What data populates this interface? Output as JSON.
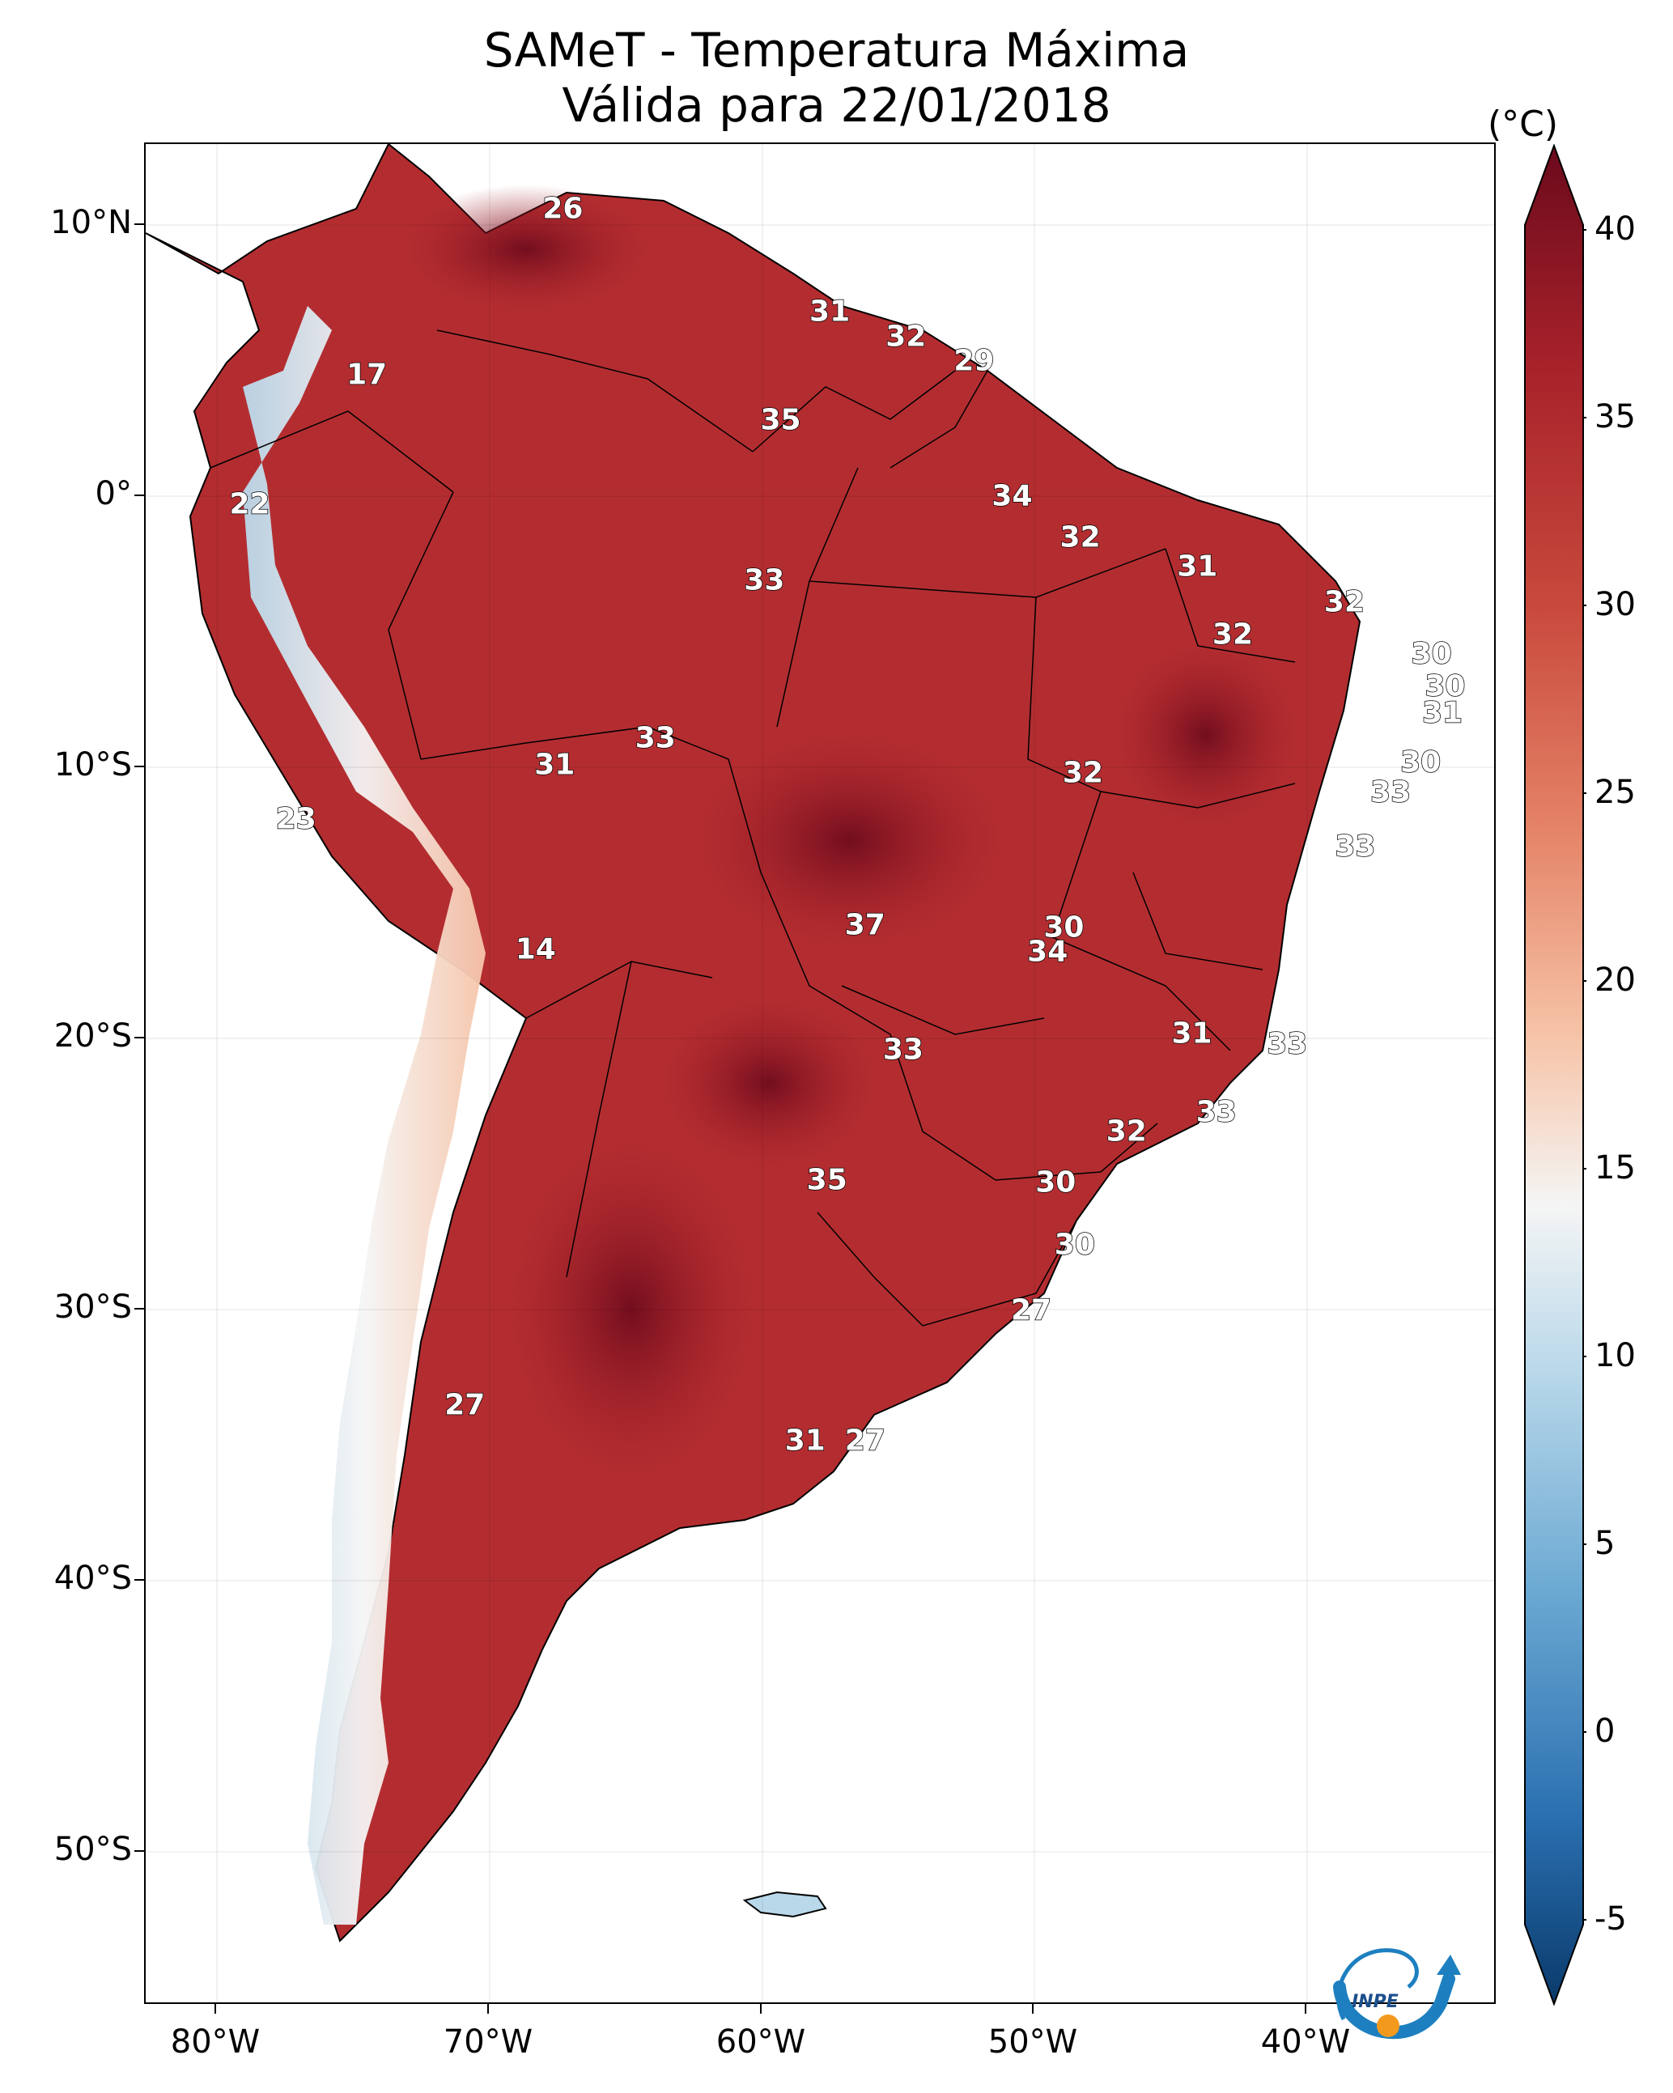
{
  "title": "SAMeT - Temperatura Máxima",
  "subtitle": "Válida para 22/01/2018",
  "colorbar": {
    "unit": "(°C)",
    "ticks": [
      "40",
      "35",
      "30",
      "25",
      "20",
      "15",
      "10",
      "5",
      "0",
      "-5"
    ],
    "range": [
      -5,
      40
    ],
    "colors": [
      "#0a3a6b",
      "#2a6fb0",
      "#6aa8d2",
      "#b9d8ea",
      "#f5f5f5",
      "#f6c4a8",
      "#e58468",
      "#c94a3d",
      "#a8222a",
      "#6b0a1c"
    ]
  },
  "axes": {
    "lat_labels": [
      "10°N",
      "0°",
      "10°S",
      "20°S",
      "30°S",
      "40°S",
      "50°S"
    ],
    "lon_labels": [
      "80°W",
      "70°W",
      "60°W",
      "50°W",
      "40°W"
    ]
  },
  "map_labels": [
    {
      "text": "26",
      "lon": -67.3,
      "lat": 10.6
    },
    {
      "text": "17",
      "lon": -74.5,
      "lat": 4.5
    },
    {
      "text": "22",
      "lon": -78.8,
      "lat": -0.3
    },
    {
      "text": "31",
      "lon": -57.5,
      "lat": 6.8
    },
    {
      "text": "32",
      "lon": -54.7,
      "lat": 5.9
    },
    {
      "text": "29",
      "lon": -52.2,
      "lat": 5.0
    },
    {
      "text": "35",
      "lon": -59.3,
      "lat": 2.8
    },
    {
      "text": "34",
      "lon": -50.8,
      "lat": 0.0
    },
    {
      "text": "32",
      "lon": -48.3,
      "lat": -1.5
    },
    {
      "text": "33",
      "lon": -59.9,
      "lat": -3.1
    },
    {
      "text": "31",
      "lon": -44.0,
      "lat": -2.6
    },
    {
      "text": "32",
      "lon": -38.6,
      "lat": -3.9
    },
    {
      "text": "32",
      "lon": -42.7,
      "lat": -5.1
    },
    {
      "text": "30",
      "lon": -35.4,
      "lat": -5.8
    },
    {
      "text": "30",
      "lon": -34.9,
      "lat": -7.0
    },
    {
      "text": "31",
      "lon": -35.0,
      "lat": -8.0
    },
    {
      "text": "33",
      "lon": -63.9,
      "lat": -8.9
    },
    {
      "text": "31",
      "lon": -67.6,
      "lat": -9.9
    },
    {
      "text": "30",
      "lon": -35.8,
      "lat": -9.8
    },
    {
      "text": "32",
      "lon": -48.2,
      "lat": -10.2
    },
    {
      "text": "33",
      "lon": -36.9,
      "lat": -10.9
    },
    {
      "text": "23",
      "lon": -77.1,
      "lat": -11.9
    },
    {
      "text": "33",
      "lon": -38.2,
      "lat": -12.9
    },
    {
      "text": "37",
      "lon": -56.2,
      "lat": -15.8
    },
    {
      "text": "30",
      "lon": -48.9,
      "lat": -15.9
    },
    {
      "text": "14",
      "lon": -68.3,
      "lat": -16.7
    },
    {
      "text": "34",
      "lon": -49.5,
      "lat": -16.8
    },
    {
      "text": "31",
      "lon": -44.2,
      "lat": -19.8
    },
    {
      "text": "33",
      "lon": -40.7,
      "lat": -20.2
    },
    {
      "text": "33",
      "lon": -54.8,
      "lat": -20.4
    },
    {
      "text": "33",
      "lon": -43.3,
      "lat": -22.7
    },
    {
      "text": "32",
      "lon": -46.6,
      "lat": -23.4
    },
    {
      "text": "35",
      "lon": -57.6,
      "lat": -25.2
    },
    {
      "text": "30",
      "lon": -49.2,
      "lat": -25.3
    },
    {
      "text": "30",
      "lon": -48.5,
      "lat": -27.6
    },
    {
      "text": "27",
      "lon": -50.1,
      "lat": -30.0
    },
    {
      "text": "27",
      "lon": -70.9,
      "lat": -33.5
    },
    {
      "text": "31",
      "lon": -58.4,
      "lat": -34.8
    },
    {
      "text": "27",
      "lon": -56.2,
      "lat": -34.8
    }
  ]
}
